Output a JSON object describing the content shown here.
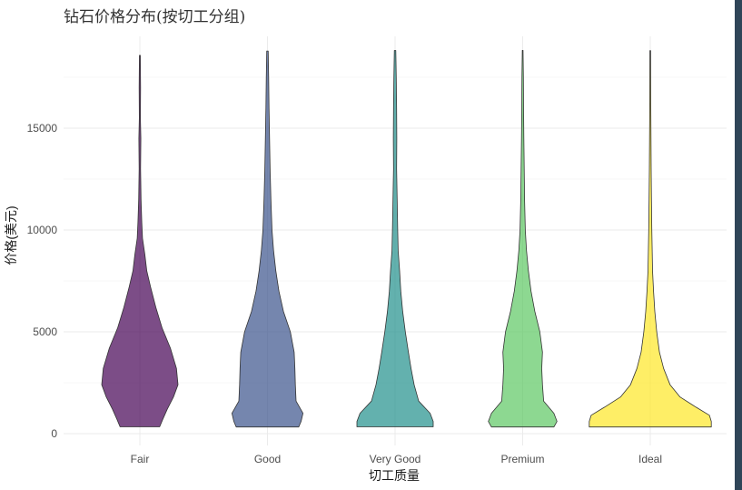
{
  "chart_data": {
    "type": "violin",
    "title": "钻石价格分布(按切工分组)",
    "xlabel": "切工质量",
    "ylabel": "价格(美元)",
    "categories": [
      "Fair",
      "Good",
      "Very Good",
      "Premium",
      "Ideal"
    ],
    "ylim": [
      -600,
      20000
    ],
    "yticks": [
      0,
      5000,
      10000,
      15000
    ],
    "ytick_labels": [
      "0",
      "5000",
      "10000",
      "15000"
    ],
    "grid": true,
    "legend": "none",
    "colors": [
      "#440154",
      "#3b528b",
      "#21908c",
      "#5dc863",
      "#fde725"
    ],
    "opacity": 0.7,
    "series": [
      {
        "category": "Fair",
        "min": 337,
        "max": 18574,
        "profile": [
          [
            337,
            0.52
          ],
          [
            700,
            0.6
          ],
          [
            1200,
            0.72
          ],
          [
            1800,
            0.88
          ],
          [
            2400,
            1.0
          ],
          [
            3200,
            0.96
          ],
          [
            4200,
            0.8
          ],
          [
            5200,
            0.58
          ],
          [
            6200,
            0.42
          ],
          [
            7200,
            0.28
          ],
          [
            8000,
            0.18
          ],
          [
            8800,
            0.13
          ],
          [
            9600,
            0.07
          ],
          [
            10400,
            0.05
          ],
          [
            11500,
            0.03
          ],
          [
            13000,
            0.02
          ],
          [
            14500,
            0.025
          ],
          [
            15500,
            0.015
          ],
          [
            17000,
            0.018
          ],
          [
            18574,
            0.012
          ]
        ]
      },
      {
        "category": "Good",
        "min": 327,
        "max": 18788,
        "profile": [
          [
            327,
            0.82
          ],
          [
            600,
            0.88
          ],
          [
            1000,
            0.93
          ],
          [
            1600,
            0.75
          ],
          [
            2400,
            0.73
          ],
          [
            3200,
            0.72
          ],
          [
            4000,
            0.7
          ],
          [
            5000,
            0.6
          ],
          [
            6000,
            0.42
          ],
          [
            7000,
            0.3
          ],
          [
            8000,
            0.22
          ],
          [
            9000,
            0.16
          ],
          [
            10000,
            0.12
          ],
          [
            11500,
            0.09
          ],
          [
            13000,
            0.07
          ],
          [
            14500,
            0.055
          ],
          [
            16000,
            0.04
          ],
          [
            17500,
            0.03
          ],
          [
            18788,
            0.02
          ]
        ]
      },
      {
        "category": "Very Good",
        "min": 336,
        "max": 18818,
        "profile": [
          [
            336,
            1.0
          ],
          [
            600,
            1.0
          ],
          [
            1000,
            0.92
          ],
          [
            1600,
            0.62
          ],
          [
            2400,
            0.5
          ],
          [
            3200,
            0.42
          ],
          [
            4000,
            0.35
          ],
          [
            5000,
            0.27
          ],
          [
            6000,
            0.2
          ],
          [
            7000,
            0.15
          ],
          [
            8000,
            0.12
          ],
          [
            9000,
            0.08
          ],
          [
            10000,
            0.07
          ],
          [
            11500,
            0.055
          ],
          [
            13000,
            0.04
          ],
          [
            14500,
            0.045
          ],
          [
            16000,
            0.04
          ],
          [
            17500,
            0.03
          ],
          [
            18818,
            0.02
          ]
        ]
      },
      {
        "category": "Premium",
        "min": 326,
        "max": 18823,
        "profile": [
          [
            326,
            0.82
          ],
          [
            600,
            0.9
          ],
          [
            1000,
            0.82
          ],
          [
            1600,
            0.55
          ],
          [
            2400,
            0.52
          ],
          [
            3200,
            0.5
          ],
          [
            4000,
            0.52
          ],
          [
            5000,
            0.45
          ],
          [
            6000,
            0.32
          ],
          [
            7000,
            0.22
          ],
          [
            8000,
            0.15
          ],
          [
            9000,
            0.1
          ],
          [
            10000,
            0.07
          ],
          [
            11500,
            0.05
          ],
          [
            13000,
            0.04
          ],
          [
            14500,
            0.03
          ],
          [
            16000,
            0.025
          ],
          [
            17500,
            0.02
          ],
          [
            18823,
            0.01
          ]
        ]
      },
      {
        "category": "Ideal",
        "min": 326,
        "max": 18806,
        "profile": [
          [
            326,
            1.6
          ],
          [
            600,
            1.6
          ],
          [
            900,
            1.55
          ],
          [
            1300,
            1.2
          ],
          [
            1800,
            0.78
          ],
          [
            2400,
            0.52
          ],
          [
            3200,
            0.35
          ],
          [
            4000,
            0.24
          ],
          [
            5000,
            0.17
          ],
          [
            6000,
            0.12
          ],
          [
            7000,
            0.085
          ],
          [
            8000,
            0.06
          ],
          [
            9000,
            0.05
          ],
          [
            10000,
            0.04
          ],
          [
            11500,
            0.03
          ],
          [
            13000,
            0.025
          ],
          [
            14500,
            0.02
          ],
          [
            16000,
            0.015
          ],
          [
            17500,
            0.012
          ],
          [
            18806,
            0.01
          ]
        ]
      }
    ]
  }
}
